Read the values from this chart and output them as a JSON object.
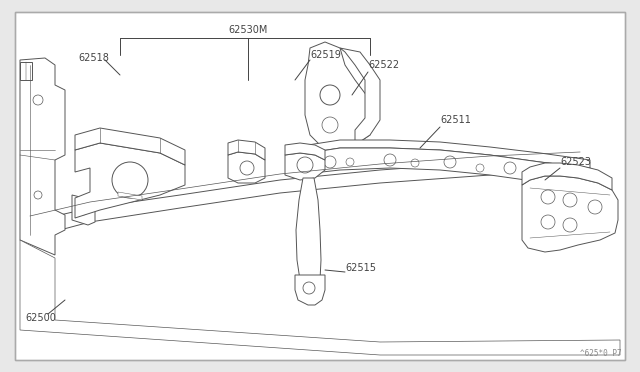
{
  "bg_outer": "#e8e8e8",
  "bg_inner": "#ffffff",
  "line_color": "#666666",
  "part_edge": "#555555",
  "part_fill": "#ffffff",
  "watermark": "^625*0 P7",
  "figsize": [
    6.4,
    3.72
  ],
  "dpi": 100,
  "border_lw": 1.0,
  "part_lw": 0.7,
  "label_fs": 7.0,
  "label_color": "#444444"
}
